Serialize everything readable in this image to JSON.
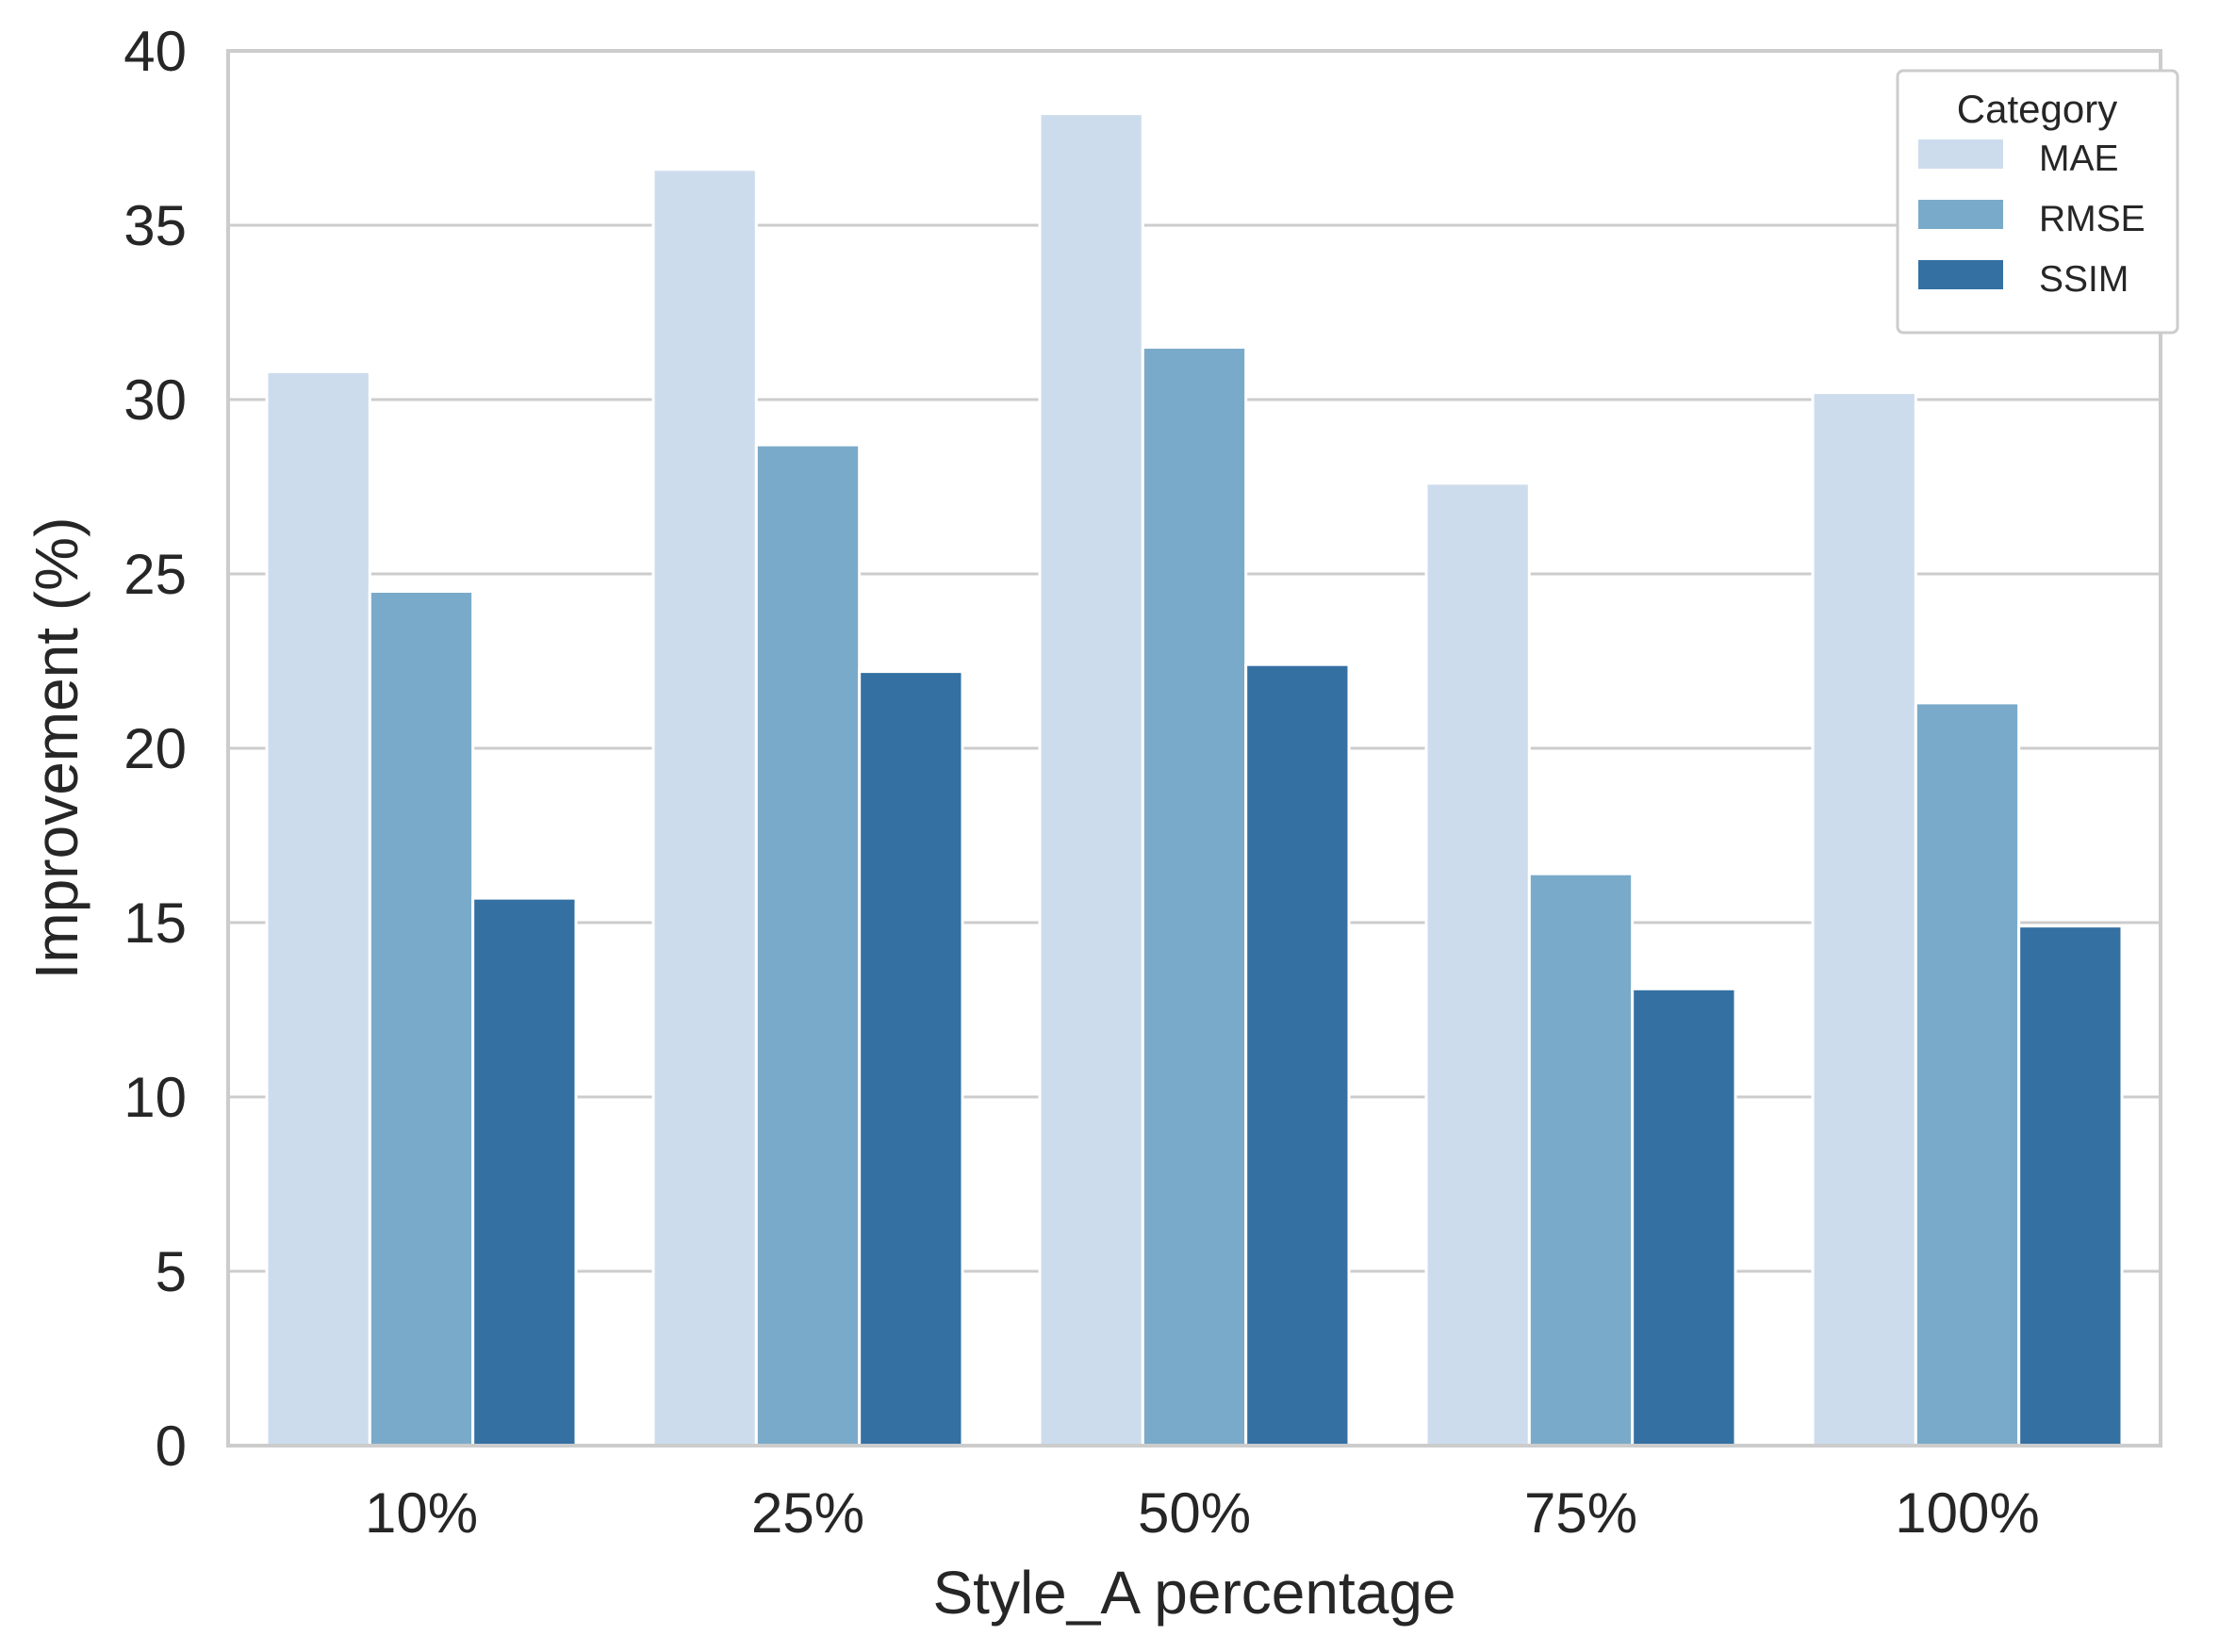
{
  "chart_data": {
    "type": "bar",
    "categories": [
      "10%",
      "25%",
      "50%",
      "75%",
      "100%"
    ],
    "series": [
      {
        "name": "MAE",
        "values": [
          30.8,
          36.6,
          38.2,
          27.6,
          30.2
        ],
        "color": "#cddced"
      },
      {
        "name": "RMSE",
        "values": [
          24.5,
          28.7,
          31.5,
          16.4,
          21.3
        ],
        "color": "#7aaac9"
      },
      {
        "name": "SSIM",
        "values": [
          15.7,
          22.2,
          22.4,
          13.1,
          14.9
        ],
        "color": "#3470a2"
      }
    ],
    "xlabel": "Style_A percentage",
    "ylabel": "Improvement (%)",
    "ylim": [
      0,
      40
    ],
    "yticks": [
      "0",
      "5",
      "10",
      "15",
      "20",
      "25",
      "30",
      "35",
      "40"
    ],
    "grid": true,
    "legend": {
      "title": "Category",
      "position": "top-right"
    }
  }
}
